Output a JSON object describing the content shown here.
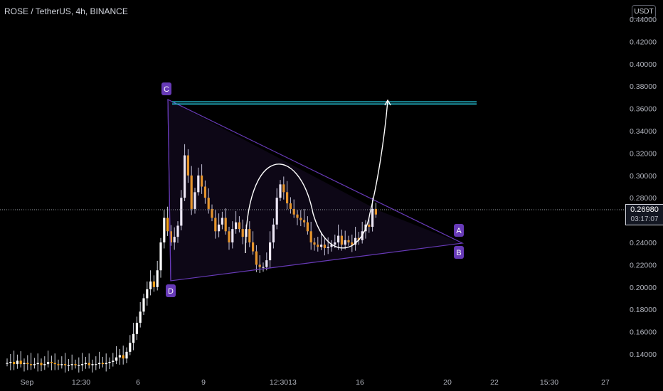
{
  "header": {
    "symbol_title": "ROSE / TetherUS, 4h, BINANCE"
  },
  "price_scale": {
    "unit": "USDT",
    "last_price": "0.26980",
    "countdown": "03:17:07"
  },
  "pattern_labels": [
    "C",
    "D",
    "A",
    "B"
  ],
  "colors": {
    "background": "#000000",
    "up_candle": "#ffffff",
    "down_candle": "#f7a21b",
    "triangle": "#673ab7",
    "resistance": "#26c6da",
    "curve": "#ffffff"
  },
  "chart_data": {
    "type": "candlestick",
    "title": "ROSE / TetherUS, 4h, BINANCE",
    "x_ticks": [
      "Sep",
      "12:30",
      "6",
      "9",
      "12:30",
      "13",
      "16",
      "20",
      "22",
      "15:30",
      "27"
    ],
    "y_ticks": [
      "0.44000",
      "0.42000",
      "0.40000",
      "0.38000",
      "0.36000",
      "0.34000",
      "0.32000",
      "0.30000",
      "0.28000",
      "0.26000",
      "0.24000",
      "0.22000",
      "0.20000",
      "0.18000",
      "0.16000",
      "0.14000"
    ],
    "ylim": [
      0.1275,
      0.4465
    ],
    "grid": false,
    "close_series": [
      0.132,
      0.133,
      0.131,
      0.134,
      0.131,
      0.132,
      0.131,
      0.13,
      0.131,
      0.132,
      0.13,
      0.131,
      0.133,
      0.132,
      0.131,
      0.13,
      0.131,
      0.13,
      0.13,
      0.131,
      0.13,
      0.13,
      0.131,
      0.132,
      0.13,
      0.131,
      0.131,
      0.132,
      0.131,
      0.132,
      0.133,
      0.134,
      0.137,
      0.139,
      0.136,
      0.142,
      0.15,
      0.158,
      0.168,
      0.178,
      0.19,
      0.198,
      0.205,
      0.2,
      0.215,
      0.24,
      0.262,
      0.25,
      0.24,
      0.245,
      0.255,
      0.28,
      0.318,
      0.3,
      0.27,
      0.285,
      0.3,
      0.29,
      0.28,
      0.27,
      0.262,
      0.25,
      0.256,
      0.262,
      0.25,
      0.24,
      0.252,
      0.258,
      0.252,
      0.245,
      0.252,
      0.24,
      0.232,
      0.22,
      0.218,
      0.218,
      0.224,
      0.24,
      0.256,
      0.28,
      0.292,
      0.285,
      0.275,
      0.27,
      0.265,
      0.262,
      0.26,
      0.258,
      0.25,
      0.24,
      0.238,
      0.236,
      0.238,
      0.235,
      0.236,
      0.238,
      0.24,
      0.246,
      0.238,
      0.242,
      0.24,
      0.238,
      0.244,
      0.242,
      0.25,
      0.256,
      0.254,
      0.27,
      0.265
    ],
    "current_price": 0.2698,
    "annotations": {
      "resistance_level": 0.365,
      "triangle_points": [
        "C",
        "D",
        "A",
        "B"
      ],
      "projected_path": "cup pattern breakout toward resistance"
    }
  }
}
